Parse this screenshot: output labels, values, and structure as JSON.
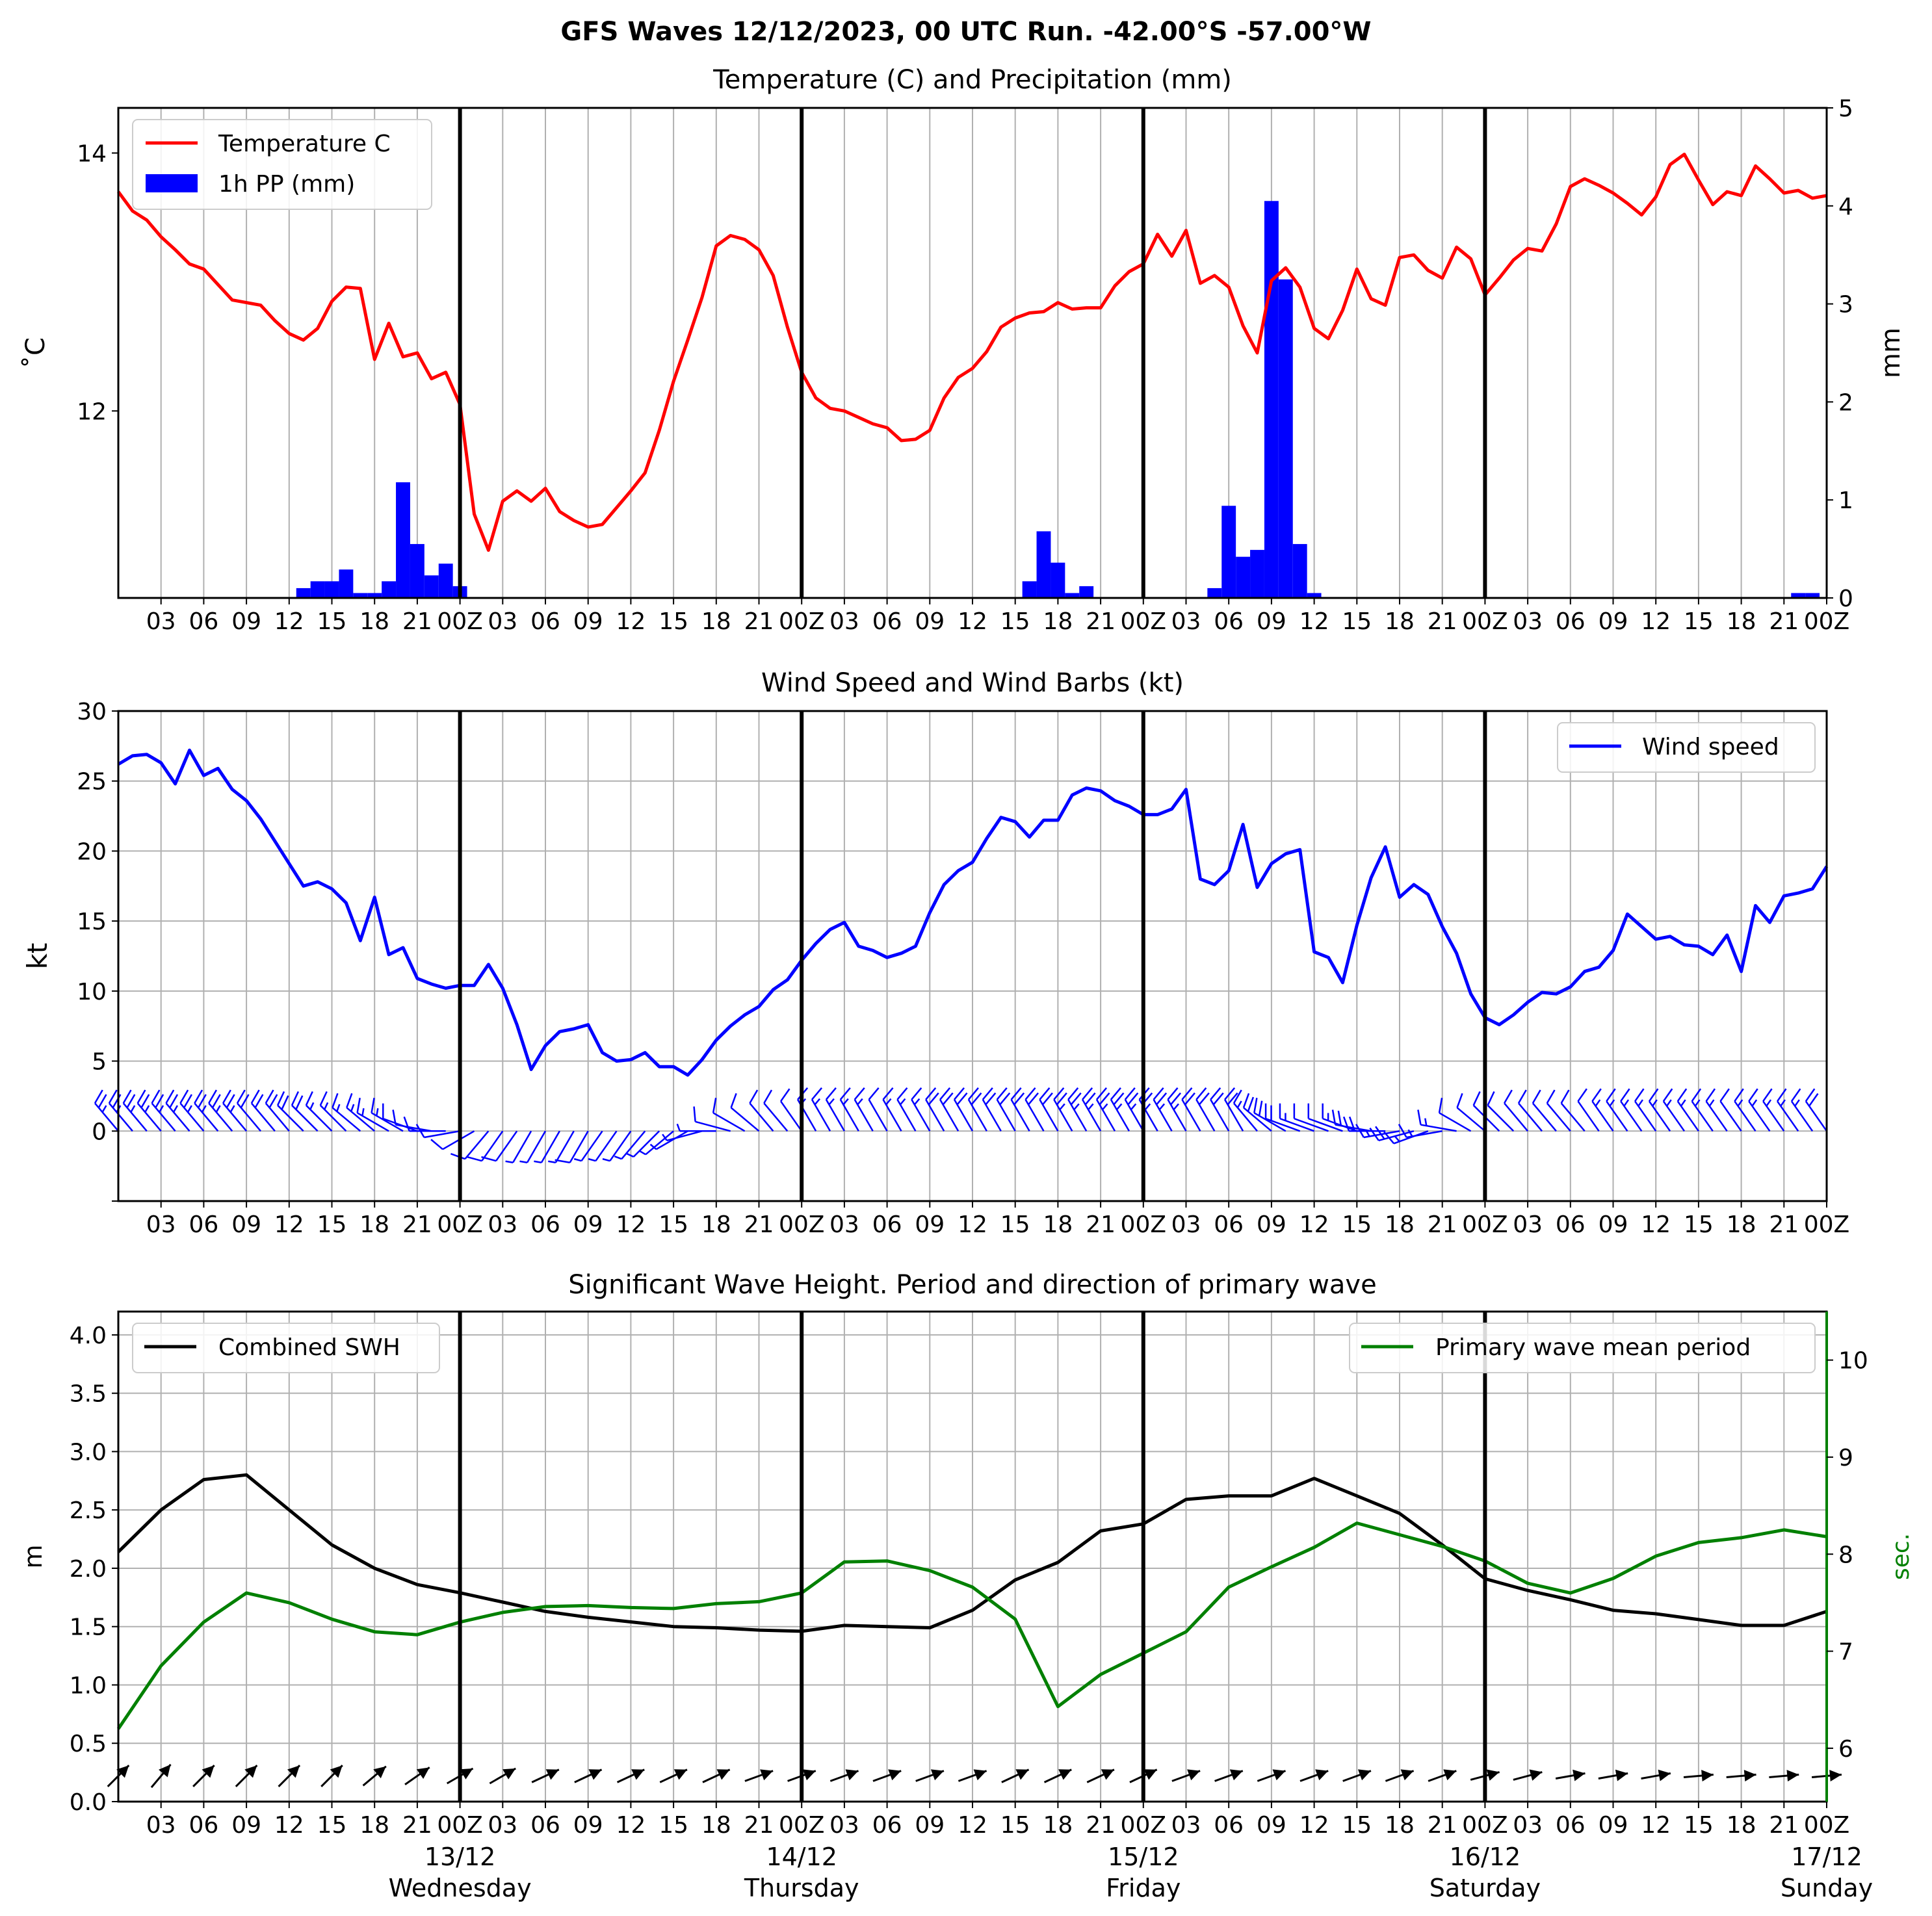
{
  "title": "GFS Waves 12/12/2023, 00 UTC Run. -42.00°S -57.00°W",
  "hour_ticks": [
    "03",
    "06",
    "09",
    "12",
    "15",
    "18",
    "21",
    "00Z",
    "03",
    "06",
    "09",
    "12",
    "15",
    "18",
    "21",
    "00Z",
    "03",
    "06",
    "09",
    "12",
    "15",
    "18",
    "21",
    "00Z",
    "03",
    "06",
    "09",
    "12",
    "15",
    "18",
    "21",
    "00Z",
    "03",
    "06",
    "09",
    "12",
    "15",
    "18",
    "21",
    "00Z"
  ],
  "day_labels": [
    {
      "date": "13/12",
      "day": "Wednesday"
    },
    {
      "date": "14/12",
      "day": "Thursday"
    },
    {
      "date": "15/12",
      "day": "Friday"
    },
    {
      "date": "16/12",
      "day": "Saturday"
    },
    {
      "date": "17/12",
      "day": "Sunday"
    }
  ],
  "colors": {
    "temperature": "#ff0000",
    "precip": "#0000ff",
    "wind": "#0000ff",
    "swh": "#000000",
    "period": "#008000",
    "grid": "#b0b0b0"
  },
  "chart_data": [
    {
      "type": "line",
      "title": "Temperature (C) and Precipitation (mm)",
      "ylabel": "˚C",
      "ylabel_right": "mm",
      "xlim_hours": [
        0,
        120
      ],
      "ylim": [
        10.55,
        14.35
      ],
      "ylim_right": [
        0,
        5
      ],
      "yticks": [
        "12",
        "14"
      ],
      "yticks_right": [
        "0",
        "1",
        "2",
        "3",
        "4",
        "5"
      ],
      "legend": [
        "Temperature C",
        "1h PP (mm)"
      ],
      "legend_position": "upper-left",
      "series": [
        {
          "name": "Temperature C",
          "x": [
            0,
            1,
            2,
            3,
            4,
            5,
            6,
            7,
            8,
            9,
            10,
            11,
            12,
            13,
            14,
            15,
            16,
            17,
            18,
            19,
            20,
            21,
            22,
            23,
            24,
            25,
            26,
            27,
            28,
            29,
            30,
            31,
            32,
            33,
            34,
            35,
            36,
            37,
            38,
            39,
            40,
            41,
            42,
            43,
            44,
            45,
            46,
            47,
            48,
            49,
            50,
            51,
            52,
            53,
            54,
            55,
            56,
            57,
            58,
            59,
            60,
            61,
            62,
            63,
            64,
            65,
            66,
            67,
            68,
            69,
            70,
            71,
            72,
            73,
            74,
            75,
            76,
            77,
            78,
            79,
            80,
            81,
            82,
            83,
            84,
            85,
            86,
            87,
            88,
            89,
            90,
            91,
            92,
            93,
            94,
            95,
            96,
            97,
            98,
            99,
            100,
            101,
            102,
            103,
            104,
            105,
            106,
            107,
            108,
            109,
            110,
            111,
            112,
            113,
            114,
            115,
            116,
            117,
            118,
            119,
            120
          ],
          "values": [
            13.7,
            13.55,
            13.48,
            13.35,
            13.25,
            13.14,
            13.1,
            12.98,
            12.86,
            12.84,
            12.82,
            12.7,
            12.6,
            12.55,
            12.64,
            12.85,
            12.96,
            12.95,
            12.4,
            12.68,
            12.42,
            12.45,
            12.25,
            12.3,
            12.05,
            11.2,
            10.92,
            11.3,
            11.38,
            11.3,
            11.4,
            11.22,
            11.15,
            11.1,
            11.12,
            11.25,
            11.38,
            11.52,
            11.85,
            12.23,
            12.55,
            12.88,
            13.28,
            13.36,
            13.33,
            13.25,
            13.05,
            12.65,
            12.3,
            12.1,
            12.02,
            12.0,
            11.95,
            11.9,
            11.87,
            11.77,
            11.78,
            11.85,
            12.1,
            12.26,
            12.33,
            12.46,
            12.65,
            12.72,
            12.76,
            12.77,
            12.84,
            12.79,
            12.8,
            12.8,
            12.97,
            13.08,
            13.14,
            13.37,
            13.2,
            13.4,
            12.99,
            13.05,
            12.96,
            12.66,
            12.45,
            13.01,
            13.11,
            12.96,
            12.64,
            12.56,
            12.78,
            13.1,
            12.87,
            12.82,
            13.19,
            13.21,
            13.09,
            13.03,
            13.27,
            13.18,
            12.9,
            13.03,
            13.17,
            13.26,
            13.24,
            13.45,
            13.74,
            13.8,
            13.75,
            13.69,
            13.61,
            13.52,
            13.66,
            13.91,
            13.99,
            13.79,
            13.6,
            13.7,
            13.67,
            13.9,
            13.8,
            13.69,
            13.71,
            13.65,
            13.67
          ],
          "color": "#ff0000"
        },
        {
          "name": "1h PP (mm)",
          "type": "bar",
          "x": [
            13,
            14,
            15,
            16,
            17,
            18,
            19,
            20,
            21,
            22,
            23,
            24,
            64,
            65,
            66,
            67,
            68,
            77,
            78,
            79,
            80,
            81,
            82,
            83,
            84,
            118,
            119
          ],
          "values": [
            0.1,
            0.17,
            0.17,
            0.29,
            0.05,
            0.05,
            0.17,
            1.18,
            0.55,
            0.23,
            0.35,
            0.12,
            0.17,
            0.68,
            0.36,
            0.05,
            0.12,
            0.1,
            0.94,
            0.42,
            0.49,
            4.05,
            3.25,
            0.55,
            0.05,
            0.05,
            0.05
          ],
          "color": "#0000ff"
        }
      ]
    },
    {
      "type": "line",
      "title": "Wind Speed and Wind Barbs (kt)",
      "ylabel": "kt",
      "xlim_hours": [
        0,
        120
      ],
      "ylim": [
        -5,
        30
      ],
      "yticks": [
        "0",
        "5",
        "10",
        "15",
        "20",
        "25",
        "30"
      ],
      "legend": [
        "Wind speed"
      ],
      "legend_position": "upper-right",
      "series": [
        {
          "name": "Wind speed",
          "x": [
            0,
            1,
            2,
            3,
            4,
            5,
            6,
            7,
            8,
            9,
            10,
            11,
            12,
            13,
            14,
            15,
            16,
            17,
            18,
            19,
            20,
            21,
            22,
            23,
            24,
            25,
            26,
            27,
            28,
            29,
            30,
            31,
            32,
            33,
            34,
            35,
            36,
            37,
            38,
            39,
            40,
            41,
            42,
            43,
            44,
            45,
            46,
            47,
            48,
            49,
            50,
            51,
            52,
            53,
            54,
            55,
            56,
            57,
            58,
            59,
            60,
            61,
            62,
            63,
            64,
            65,
            66,
            67,
            68,
            69,
            70,
            71,
            72,
            73,
            74,
            75,
            76,
            77,
            78,
            79,
            80,
            81,
            82,
            83,
            84,
            85,
            86,
            87,
            88,
            89,
            90,
            91,
            92,
            93,
            94,
            95,
            96,
            97,
            98,
            99,
            100,
            101,
            102,
            103,
            104,
            105,
            106,
            107,
            108,
            109,
            110,
            111,
            112,
            113,
            114,
            115,
            116,
            117,
            118,
            119,
            120
          ],
          "values": [
            26.2,
            26.8,
            26.9,
            26.3,
            24.8,
            27.2,
            25.4,
            25.9,
            24.4,
            23.6,
            22.3,
            20.7,
            19.1,
            17.5,
            17.8,
            17.3,
            16.3,
            13.6,
            16.7,
            12.6,
            13.1,
            10.9,
            10.5,
            10.2,
            10.4,
            10.4,
            11.9,
            10.2,
            7.6,
            4.4,
            6.1,
            7.1,
            7.3,
            7.6,
            5.6,
            5.0,
            5.1,
            5.6,
            4.6,
            4.6,
            4.0,
            5.1,
            6.5,
            7.5,
            8.3,
            8.9,
            10.1,
            10.8,
            12.2,
            13.4,
            14.4,
            14.9,
            13.2,
            12.9,
            12.4,
            12.7,
            13.2,
            15.6,
            17.6,
            18.6,
            19.2,
            20.9,
            22.4,
            22.1,
            21.0,
            22.2,
            22.2,
            24.0,
            24.5,
            24.3,
            23.6,
            23.2,
            22.6,
            22.6,
            23.0,
            24.4,
            18.0,
            17.6,
            18.6,
            21.9,
            17.4,
            19.1,
            19.8,
            20.1,
            12.8,
            12.4,
            10.6,
            14.7,
            18.1,
            20.3,
            16.7,
            17.6,
            16.9,
            14.6,
            12.7,
            9.8,
            8.1,
            7.6,
            8.3,
            9.2,
            9.9,
            9.8,
            10.3,
            11.4,
            11.7,
            12.9,
            15.5,
            14.6,
            13.7,
            13.9,
            13.3,
            13.2,
            12.6,
            14.0,
            11.4,
            16.1,
            14.9,
            16.8,
            17.0,
            17.3,
            18.9
          ],
          "color": "#0000ff"
        }
      ],
      "wind_barbs": {
        "x_step_hours": 1,
        "from_direction_deg": [
          320,
          320,
          320,
          320,
          320,
          320,
          320,
          320,
          320,
          320,
          320,
          320,
          320,
          315,
          315,
          315,
          315,
          310,
          310,
          300,
          300,
          290,
          280,
          270,
          260,
          240,
          220,
          215,
          215,
          210,
          210,
          210,
          210,
          210,
          215,
          215,
          215,
          220,
          225,
          230,
          240,
          255,
          270,
          285,
          300,
          310,
          320,
          320,
          325,
          330,
          330,
          330,
          330,
          330,
          330,
          330,
          330,
          330,
          330,
          330,
          330,
          330,
          330,
          330,
          330,
          330,
          330,
          330,
          330,
          330,
          330,
          330,
          330,
          330,
          330,
          330,
          330,
          330,
          330,
          330,
          320,
          310,
          300,
          290,
          290,
          290,
          290,
          290,
          280,
          270,
          260,
          255,
          250,
          260,
          280,
          300,
          310,
          315,
          315,
          320,
          320,
          320,
          320,
          320,
          325,
          325,
          325,
          325,
          325,
          325,
          325,
          325,
          325,
          325,
          325,
          325,
          325,
          325,
          325,
          325,
          325
        ]
      }
    },
    {
      "type": "line",
      "title": "Significant Wave Height. Period and direction of primary wave",
      "ylabel": "m",
      "ylabel_right": "sec.",
      "xlim_hours": [
        0,
        120
      ],
      "ylim": [
        0,
        4.2
      ],
      "ylim_right": [
        5.45,
        10.5
      ],
      "yticks": [
        "0.0",
        "0.5",
        "1.0",
        "1.5",
        "2.0",
        "2.5",
        "3.0",
        "3.5",
        "4.0"
      ],
      "yticks_right": [
        "6",
        "7",
        "8",
        "9",
        "10"
      ],
      "legend": [
        "Combined SWH",
        "Primary wave mean period"
      ],
      "series": [
        {
          "name": "Combined SWH",
          "x": [
            0,
            3,
            6,
            9,
            12,
            15,
            18,
            21,
            24,
            27,
            30,
            33,
            36,
            39,
            42,
            45,
            48,
            51,
            54,
            57,
            60,
            63,
            66,
            69,
            72,
            75,
            78,
            81,
            84,
            87,
            90,
            93,
            96,
            99,
            102,
            105,
            108,
            111,
            114,
            117,
            120
          ],
          "values": [
            2.14,
            2.5,
            2.76,
            2.8,
            2.5,
            2.2,
            2.0,
            1.86,
            1.79,
            1.71,
            1.63,
            1.58,
            1.54,
            1.5,
            1.49,
            1.47,
            1.46,
            1.51,
            1.5,
            1.49,
            1.64,
            1.9,
            2.05,
            2.32,
            2.38,
            2.59,
            2.62,
            2.62,
            2.77,
            2.62,
            2.47,
            2.2,
            1.91,
            1.81,
            1.73,
            1.64,
            1.61,
            1.56,
            1.51,
            1.51,
            1.63
          ],
          "color": "#000000"
        },
        {
          "name": "Primary wave mean period",
          "x": [
            0,
            3,
            6,
            9,
            12,
            15,
            18,
            21,
            24,
            27,
            30,
            33,
            36,
            39,
            42,
            45,
            48,
            51,
            54,
            57,
            60,
            63,
            66,
            69,
            72,
            75,
            78,
            81,
            84,
            87,
            90,
            93,
            96,
            99,
            102,
            105,
            108,
            111,
            114,
            117,
            120
          ],
          "values": [
            6.2,
            6.85,
            7.3,
            7.6,
            7.5,
            7.33,
            7.2,
            7.17,
            7.3,
            7.4,
            7.46,
            7.47,
            7.45,
            7.44,
            7.49,
            7.51,
            7.6,
            7.92,
            7.93,
            7.83,
            7.66,
            7.33,
            6.43,
            6.76,
            6.98,
            7.2,
            7.66,
            7.87,
            8.07,
            8.32,
            8.2,
            8.08,
            7.93,
            7.7,
            7.6,
            7.75,
            7.98,
            8.12,
            8.17,
            8.25,
            8.18
          ],
          "color": "#008000"
        }
      ],
      "wave_direction": {
        "x": [
          0,
          3,
          6,
          9,
          12,
          15,
          18,
          21,
          24,
          27,
          30,
          33,
          36,
          39,
          42,
          45,
          48,
          51,
          54,
          57,
          60,
          63,
          66,
          69,
          72,
          75,
          78,
          81,
          84,
          87,
          90,
          93,
          96,
          99,
          102,
          105,
          108,
          111,
          114,
          117,
          120
        ],
        "from_direction_deg": [
          225,
          220,
          225,
          225,
          225,
          225,
          230,
          235,
          240,
          240,
          245,
          245,
          245,
          245,
          245,
          250,
          250,
          250,
          250,
          250,
          250,
          245,
          245,
          245,
          245,
          250,
          250,
          250,
          250,
          250,
          250,
          250,
          255,
          255,
          260,
          260,
          260,
          265,
          265,
          265,
          265
        ]
      }
    }
  ]
}
